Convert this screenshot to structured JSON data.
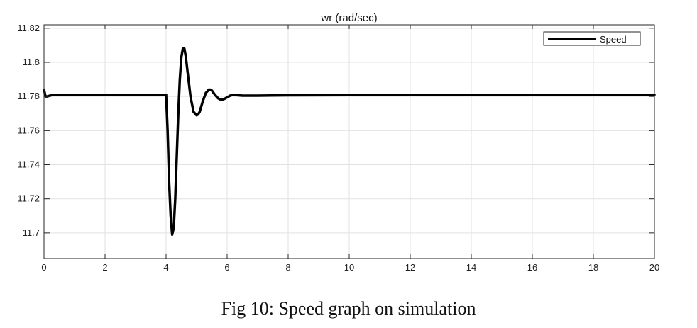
{
  "caption": "Fig 10: Speed graph on simulation",
  "chart_data": {
    "type": "line",
    "title": "wr (rad/sec)",
    "xlabel": "",
    "ylabel": "",
    "xlim": [
      0,
      20
    ],
    "ylim": [
      11.685,
      11.822
    ],
    "x_ticks": [
      0,
      2,
      4,
      6,
      8,
      10,
      12,
      14,
      16,
      18,
      20
    ],
    "x_tick_labels": [
      "0",
      "2",
      "4",
      "6",
      "8",
      "10",
      "12",
      "14",
      "16",
      "18",
      "20"
    ],
    "y_ticks": [
      11.7,
      11.72,
      11.74,
      11.76,
      11.78,
      11.8,
      11.82
    ],
    "y_tick_labels": [
      "11.7",
      "11.72",
      "11.74",
      "11.76",
      "11.78",
      "11.8",
      "11.82"
    ],
    "grid": true,
    "legend_position": "top-right",
    "series": [
      {
        "name": "Speed",
        "color": "#000000",
        "x": [
          0,
          0.05,
          0.1,
          0.2,
          0.3,
          0.5,
          1,
          2,
          3,
          3.9,
          3.98,
          4.0,
          4.05,
          4.1,
          4.15,
          4.2,
          4.25,
          4.3,
          4.35,
          4.4,
          4.45,
          4.5,
          4.55,
          4.6,
          4.65,
          4.7,
          4.8,
          4.9,
          5.0,
          5.05,
          5.1,
          5.2,
          5.3,
          5.4,
          5.45,
          5.5,
          5.6,
          5.7,
          5.8,
          5.9,
          6.0,
          6.1,
          6.2,
          6.3,
          6.5,
          7,
          8,
          10,
          12,
          14,
          16,
          18,
          20
        ],
        "y": [
          11.784,
          11.78,
          11.78,
          11.7805,
          11.781,
          11.781,
          11.781,
          11.781,
          11.781,
          11.781,
          11.781,
          11.781,
          11.76,
          11.73,
          11.71,
          11.699,
          11.703,
          11.72,
          11.745,
          11.77,
          11.79,
          11.803,
          11.808,
          11.808,
          11.803,
          11.795,
          11.78,
          11.771,
          11.769,
          11.7695,
          11.771,
          11.777,
          11.782,
          11.784,
          11.784,
          11.7835,
          11.781,
          11.779,
          11.778,
          11.7785,
          11.7795,
          11.7805,
          11.781,
          11.7808,
          11.7805,
          11.7805,
          11.7807,
          11.7808,
          11.7808,
          11.7809,
          11.781,
          11.781,
          11.781
        ]
      }
    ]
  }
}
